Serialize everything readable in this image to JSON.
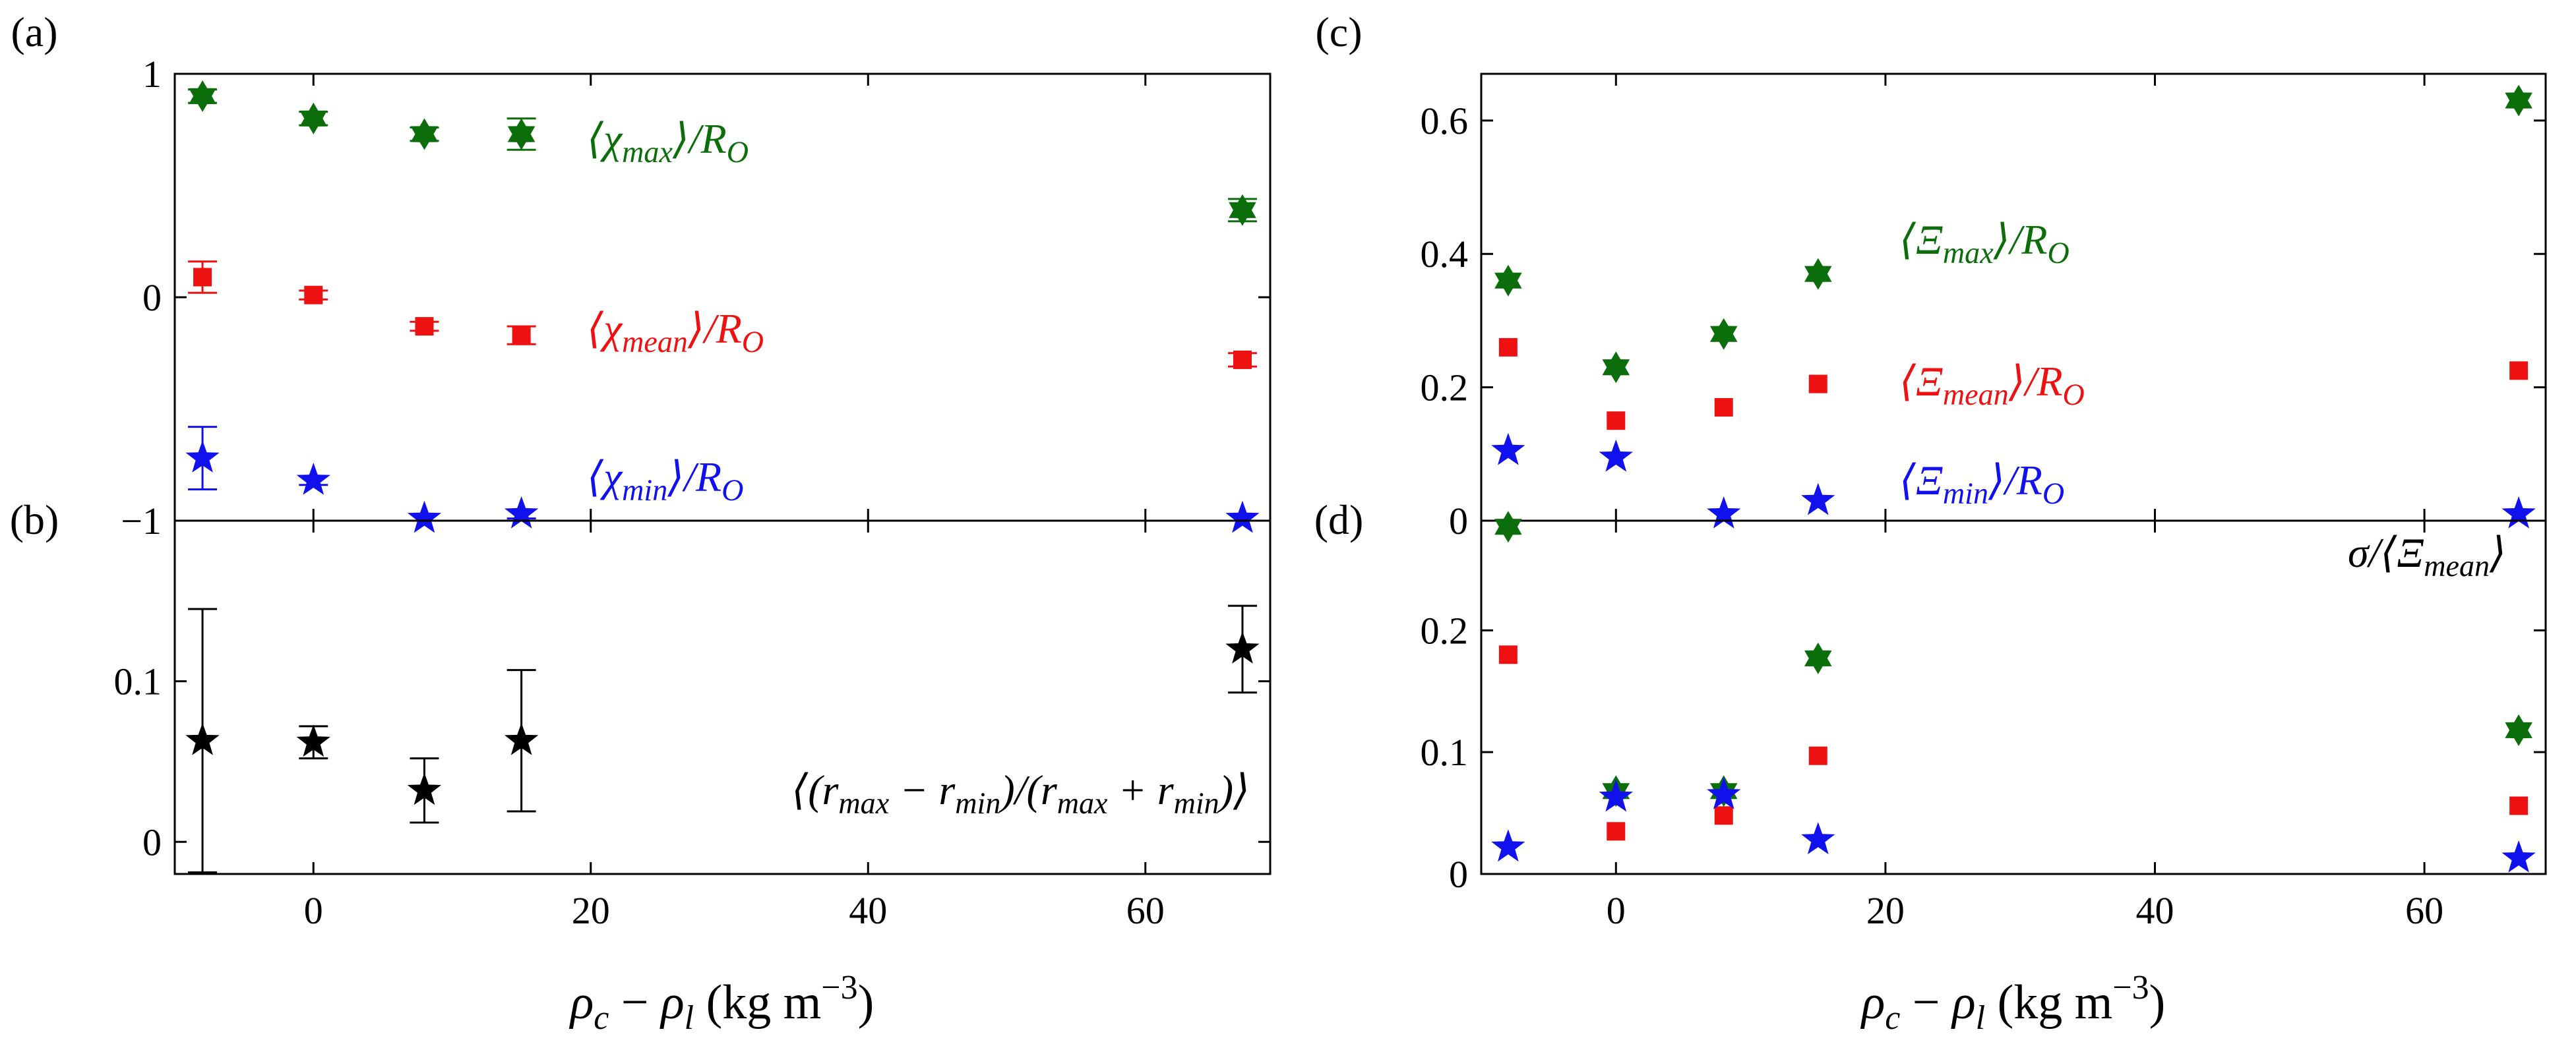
{
  "figure": {
    "panel_labels": [
      "(a)",
      "(b)",
      "(c)",
      "(d)"
    ],
    "xlabel": "ρc − ρl (kg m−3)"
  },
  "chart_data": [
    {
      "panel": "(a)",
      "type": "scatter",
      "xlim": [
        -10,
        69
      ],
      "ylim": [
        -1,
        1
      ],
      "xticks": [
        0,
        20,
        40,
        60
      ],
      "yticks": [
        -1,
        0,
        1
      ],
      "ytick_labels": [
        "−1",
        "0",
        "1"
      ],
      "grid": false,
      "series": [
        {
          "name": "⟨χmax⟩/RO",
          "label_parts": [
            "⟨χ",
            "max",
            "⟩/R",
            "O"
          ],
          "color": "#0b6e0b",
          "marker": "hexagram",
          "x": [
            -8,
            0,
            8,
            15,
            67
          ],
          "y": [
            0.9,
            0.8,
            0.73,
            0.73,
            0.39
          ],
          "err": [
            0.03,
            0.03,
            0.03,
            0.07,
            0.05
          ]
        },
        {
          "name": "⟨χmean⟩/RO",
          "label_parts": [
            "⟨χ",
            "mean",
            "⟩/R",
            "O"
          ],
          "color": "#ee1111",
          "marker": "square",
          "x": [
            -8,
            0,
            8,
            15,
            67
          ],
          "y": [
            0.09,
            0.01,
            -0.13,
            -0.17,
            -0.28
          ],
          "err": [
            0.07,
            0.02,
            0.02,
            0.04,
            0.03
          ]
        },
        {
          "name": "⟨χmin⟩/RO",
          "label_parts": [
            "⟨χ",
            "min",
            "⟩/R",
            "O"
          ],
          "color": "#1111ee",
          "marker": "star",
          "x": [
            -8,
            0,
            8,
            15,
            67
          ],
          "y": [
            -0.72,
            -0.82,
            -0.99,
            -0.97,
            -0.99
          ],
          "err": [
            0.14,
            0.02,
            0.0,
            0.02,
            0.0
          ]
        }
      ]
    },
    {
      "panel": "(b)",
      "type": "scatter",
      "xlim": [
        -10,
        69
      ],
      "ylim": [
        -0.02,
        0.2
      ],
      "xticks": [
        0,
        20,
        40,
        60
      ],
      "xtick_labels": [
        "0",
        "20",
        "40",
        "60"
      ],
      "yticks": [
        0,
        0.1
      ],
      "ytick_labels": [
        "0",
        "0.1"
      ],
      "annotation": "⟨(rmax − rmin)/(rmax + rmin)⟩",
      "annotation_parts": [
        "⟨(r",
        "max",
        " − r",
        "min",
        ")/(r",
        "max",
        " + r",
        "min",
        ")⟩"
      ],
      "grid": false,
      "series": [
        {
          "color": "#000000",
          "marker": "star",
          "x": [
            -8,
            0,
            8,
            15,
            67
          ],
          "y": [
            0.063,
            0.062,
            0.032,
            0.063,
            0.12
          ],
          "err": [
            0.082,
            0.01,
            0.02,
            0.044,
            0.027
          ]
        }
      ]
    },
    {
      "panel": "(c)",
      "type": "scatter",
      "xlim": [
        -10,
        69
      ],
      "ylim": [
        0,
        0.67
      ],
      "xticks": [
        0,
        20,
        40,
        60
      ],
      "yticks": [
        0,
        0.2,
        0.4,
        0.6
      ],
      "ytick_labels": [
        "0",
        "0.2",
        "0.4",
        "0.6"
      ],
      "grid": false,
      "series": [
        {
          "name": "⟨Ξmax⟩/RO",
          "label_parts": [
            "⟨Ξ",
            "max",
            "⟩/R",
            "O"
          ],
          "color": "#0b6e0b",
          "marker": "hexagram",
          "x": [
            -8,
            0,
            8,
            15,
            67
          ],
          "y": [
            0.36,
            0.23,
            0.28,
            0.37,
            0.63
          ]
        },
        {
          "name": "⟨Ξmean⟩/RO",
          "label_parts": [
            "⟨Ξ",
            "mean",
            "⟩/R",
            "O"
          ],
          "color": "#ee1111",
          "marker": "square",
          "x": [
            -8,
            0,
            8,
            15,
            67
          ],
          "y": [
            0.26,
            0.15,
            0.17,
            0.205,
            0.225
          ]
        },
        {
          "name": "⟨Ξmin⟩/RO",
          "label_parts": [
            "⟨Ξ",
            "min",
            "⟩/R",
            "O"
          ],
          "color": "#1111ee",
          "marker": "star",
          "x": [
            -8,
            0,
            8,
            15,
            67
          ],
          "y": [
            0.105,
            0.095,
            0.01,
            0.03,
            0.01
          ]
        }
      ]
    },
    {
      "panel": "(d)",
      "type": "scatter",
      "xlim": [
        -10,
        69
      ],
      "ylim": [
        0,
        0.29
      ],
      "xticks": [
        0,
        20,
        40,
        60
      ],
      "xtick_labels": [
        "0",
        "20",
        "40",
        "60"
      ],
      "yticks": [
        0,
        0.1,
        0.2
      ],
      "ytick_labels": [
        "0",
        "0.1",
        "0.2"
      ],
      "annotation": "σ/⟨Ξmean⟩",
      "annotation_parts": [
        "σ/⟨Ξ",
        "mean",
        "⟩"
      ],
      "grid": false,
      "series": [
        {
          "color": "#0b6e0b",
          "marker": "hexagram",
          "x": [
            -8,
            0,
            8,
            15,
            67
          ],
          "y": [
            0.285,
            0.068,
            0.068,
            0.177,
            0.118
          ]
        },
        {
          "color": "#ee1111",
          "marker": "square",
          "x": [
            -8,
            0,
            8,
            15,
            67
          ],
          "y": [
            0.18,
            0.035,
            0.048,
            0.097,
            0.056
          ]
        },
        {
          "color": "#1111ee",
          "marker": "star",
          "x": [
            -8,
            0,
            8,
            15,
            67
          ],
          "y": [
            0.022,
            0.063,
            0.065,
            0.028,
            0.013
          ]
        }
      ]
    }
  ]
}
